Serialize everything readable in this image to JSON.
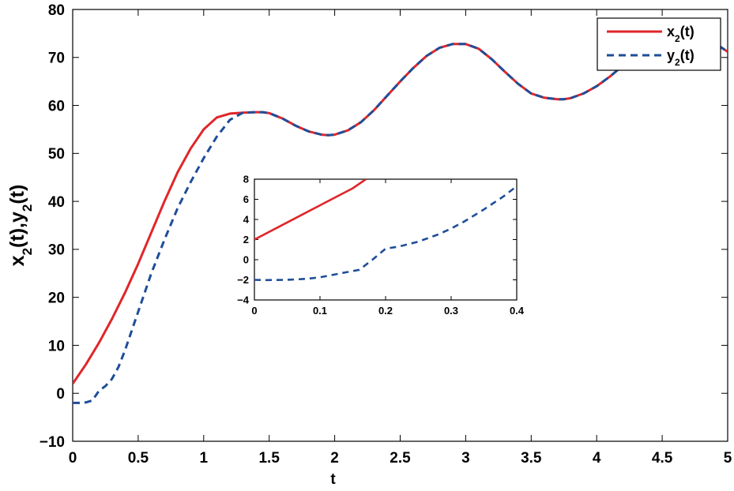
{
  "chart_data": [
    {
      "type": "line",
      "title": "",
      "xlabel": "t",
      "ylabel": "x2(t),y2(t)",
      "xlim": [
        0,
        5
      ],
      "ylim": [
        -10,
        80
      ],
      "x_ticks": [
        "0",
        "0.5",
        "1",
        "1.5",
        "2",
        "2.5",
        "3",
        "3.5",
        "4",
        "4.5",
        "5"
      ],
      "y_ticks": [
        "−10",
        "0",
        "10",
        "20",
        "30",
        "40",
        "50",
        "60",
        "70",
        "80"
      ],
      "grid": false,
      "legend_position": "top-right",
      "series": [
        {
          "name": "x2(t)",
          "color": "#e0262a",
          "style": "solid",
          "x": [
            0,
            0.1,
            0.2,
            0.3,
            0.4,
            0.5,
            0.6,
            0.7,
            0.8,
            0.9,
            1.0,
            1.1,
            1.2,
            1.3,
            1.4,
            1.45,
            1.5,
            1.6,
            1.7,
            1.8,
            1.9,
            1.95,
            2.0,
            2.1,
            2.2,
            2.3,
            2.4,
            2.5,
            2.6,
            2.7,
            2.8,
            2.9,
            3.0,
            3.1,
            3.2,
            3.3,
            3.4,
            3.5,
            3.6,
            3.7,
            3.75,
            3.8,
            3.9,
            4.0,
            4.1,
            4.2,
            4.3,
            4.4,
            4.5,
            4.6,
            4.7,
            4.8,
            4.9,
            5.0
          ],
          "y": [
            2,
            6,
            10.5,
            15.5,
            21,
            27,
            33.5,
            40,
            46,
            51,
            55,
            57.5,
            58.3,
            58.5,
            58.6,
            58.6,
            58.4,
            57.3,
            55.8,
            54.6,
            53.9,
            53.8,
            53.9,
            54.8,
            56.5,
            59,
            62,
            65,
            67.8,
            70.3,
            72,
            72.8,
            72.8,
            71.8,
            69.6,
            67,
            64.5,
            62.5,
            61.6,
            61.3,
            61.3,
            61.5,
            62.5,
            64,
            66,
            68.3,
            70.3,
            71.8,
            72.8,
            73.6,
            74,
            73.9,
            73,
            71.2
          ]
        },
        {
          "name": "y2(t)",
          "color": "#1f4e99",
          "style": "dashed",
          "x": [
            0,
            0.05,
            0.1,
            0.15,
            0.2,
            0.25,
            0.3,
            0.35,
            0.4,
            0.5,
            0.6,
            0.7,
            0.8,
            0.9,
            1.0,
            1.1,
            1.2,
            1.3,
            1.4,
            1.45,
            1.5,
            1.6,
            1.7,
            1.8,
            1.9,
            1.95,
            2.0,
            2.1,
            2.2,
            2.3,
            2.4,
            2.5,
            2.6,
            2.7,
            2.8,
            2.9,
            3.0,
            3.1,
            3.2,
            3.3,
            3.4,
            3.5,
            3.6,
            3.7,
            3.75,
            3.8,
            3.9,
            4.0,
            4.1,
            4.2,
            4.3,
            4.4,
            4.5,
            4.6,
            4.7,
            4.8,
            4.9,
            5.0
          ],
          "y": [
            -2,
            -2,
            -1.9,
            -1.5,
            0.5,
            1.5,
            3,
            5.5,
            9,
            17,
            25,
            32,
            38.5,
            44,
            49,
            53.5,
            57,
            58.5,
            58.6,
            58.6,
            58.4,
            57.3,
            55.8,
            54.6,
            53.9,
            53.8,
            53.9,
            54.8,
            56.5,
            59,
            62,
            65,
            67.8,
            70.3,
            72,
            72.8,
            72.8,
            71.8,
            69.6,
            67,
            64.5,
            62.5,
            61.6,
            61.3,
            61.3,
            61.5,
            62.5,
            64,
            66,
            68.3,
            70.3,
            71.8,
            72.8,
            73.6,
            74,
            73.9,
            73,
            71.2
          ]
        }
      ]
    },
    {
      "type": "line",
      "title": "",
      "xlabel": "",
      "ylabel": "",
      "xlim": [
        0,
        0.4
      ],
      "ylim": [
        -4,
        8
      ],
      "x_ticks": [
        "0",
        "0.1",
        "0.2",
        "0.3",
        "0.4"
      ],
      "y_ticks": [
        "−4",
        "−2",
        "0",
        "2",
        "4",
        "6",
        "8"
      ],
      "grid": false,
      "series": [
        {
          "color": "#e0262a",
          "style": "solid",
          "x": [
            0,
            0.05,
            0.1,
            0.15,
            0.17
          ],
          "y": [
            2,
            3.7,
            5.4,
            7.1,
            8
          ]
        },
        {
          "color": "#1f4e99",
          "style": "dashed",
          "x": [
            0,
            0.02,
            0.05,
            0.08,
            0.1,
            0.12,
            0.14,
            0.16,
            0.18,
            0.2,
            0.22,
            0.25,
            0.28,
            0.3,
            0.32,
            0.35,
            0.38,
            0.4
          ],
          "y": [
            -2,
            -2.02,
            -2,
            -1.9,
            -1.75,
            -1.5,
            -1.25,
            -1,
            0,
            1.1,
            1.3,
            1.8,
            2.5,
            3.1,
            3.8,
            5,
            6.3,
            7.3
          ]
        }
      ]
    }
  ]
}
